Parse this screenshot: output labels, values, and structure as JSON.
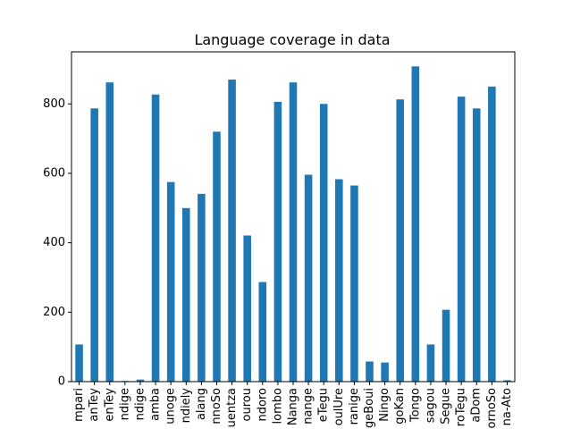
{
  "chart_data": {
    "type": "bar",
    "title": "Language coverage in data",
    "xlabel": "",
    "ylabel": "",
    "ylim": [
      0,
      950
    ],
    "yticks": [
      0,
      200,
      400,
      600,
      800
    ],
    "categories": [
      "mpari",
      "anTey",
      "enTey",
      "ndige",
      "ndige",
      "amba",
      "unoge",
      "ndiely",
      "alang",
      "nnoSo",
      "uentza",
      "ourou",
      "ndoro",
      "lombo",
      "Nanga",
      "nange",
      "eTegu",
      "oulUre",
      "ranige",
      "geBoui",
      "Ningo",
      "goKan",
      "Tongo",
      "sagou",
      "Segue",
      "roTegu",
      "aDom",
      "ornoSo",
      "na-Ato"
    ],
    "values": [
      107,
      787,
      862,
      2,
      6,
      827,
      575,
      500,
      541,
      720,
      870,
      421,
      287,
      806,
      862,
      596,
      800,
      583,
      565,
      58,
      55,
      813,
      908,
      107,
      207,
      821,
      787,
      850,
      4
    ],
    "color": "#1f77b4",
    "grid": false,
    "legend": "none"
  }
}
